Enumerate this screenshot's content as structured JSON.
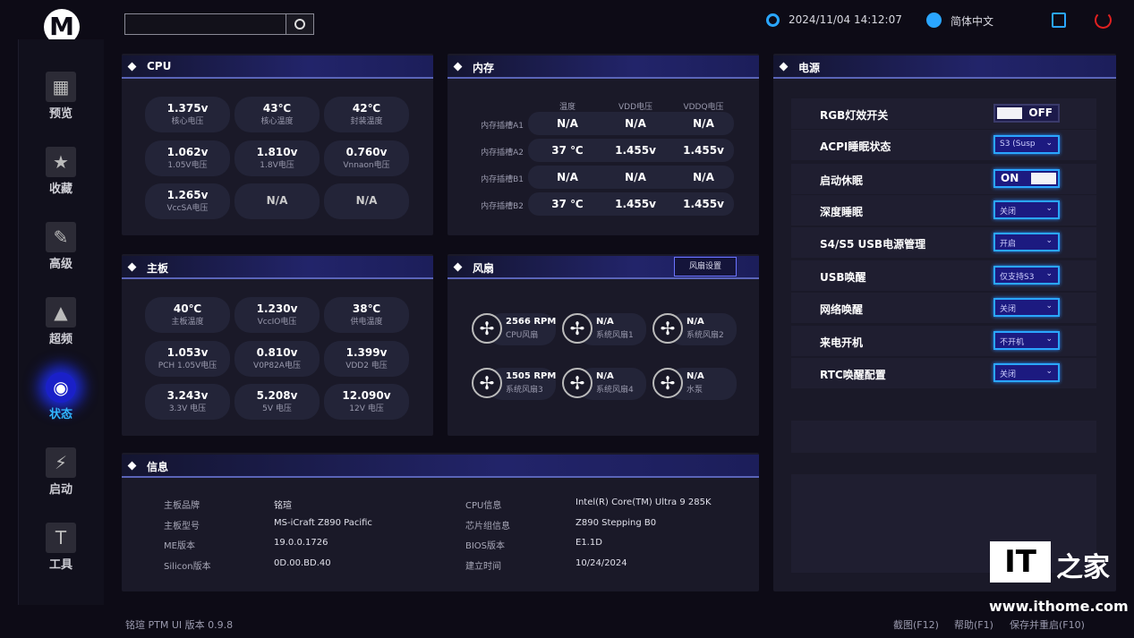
{
  "header": {
    "search_placeholder": "",
    "datetime": "2024/11/04 14:12:07",
    "language": "简体中文",
    "icons": {
      "search": "search-icon",
      "clock": "gear-icon",
      "language": "globe-icon",
      "save": "save-icon",
      "power": "power-icon"
    },
    "power_color": "#e02020",
    "accent": "#2aa6ff"
  },
  "sidebar": {
    "active": "状态",
    "items": [
      {
        "label": "预览",
        "icon": "grid-icon"
      },
      {
        "label": "收藏",
        "icon": "star-icon"
      },
      {
        "label": "高级",
        "icon": "wrench-icon"
      },
      {
        "label": "超频",
        "icon": "rocket-icon"
      },
      {
        "label": "状态",
        "icon": "eye-icon"
      },
      {
        "label": "启动",
        "icon": "ssd-icon"
      },
      {
        "label": "工具",
        "icon": "hammer-icon"
      }
    ]
  },
  "cpu": {
    "title": "CPU",
    "tiles": [
      {
        "value": "1.375v",
        "label": "核心电压"
      },
      {
        "value": "43℃",
        "label": "核心温度"
      },
      {
        "value": "42℃",
        "label": "封装温度"
      },
      {
        "value": "1.062v",
        "label": "1.05V电压"
      },
      {
        "value": "1.810v",
        "label": "1.8V电压"
      },
      {
        "value": "0.760v",
        "label": "Vnnaon电压"
      },
      {
        "value": "1.265v",
        "label": "VccSA电压"
      },
      {
        "value": "N/A",
        "label": ""
      },
      {
        "value": "N/A",
        "label": ""
      }
    ]
  },
  "memory": {
    "title": "内存",
    "columns": [
      "温度",
      "VDD电压",
      "VDDQ电压"
    ],
    "rows": [
      {
        "label": "内存插槽A1",
        "values": [
          "N/A",
          "N/A",
          "N/A"
        ]
      },
      {
        "label": "内存插槽A2",
        "values": [
          "37 ℃",
          "1.455v",
          "1.455v"
        ]
      },
      {
        "label": "内存插槽B1",
        "values": [
          "N/A",
          "N/A",
          "N/A"
        ]
      },
      {
        "label": "内存插槽B2",
        "values": [
          "37 ℃",
          "1.455v",
          "1.455v"
        ]
      }
    ]
  },
  "board": {
    "title": "主板",
    "tiles": [
      {
        "value": "40℃",
        "label": "主板温度"
      },
      {
        "value": "1.230v",
        "label": "VccIO电压"
      },
      {
        "value": "38℃",
        "label": "供电温度"
      },
      {
        "value": "1.053v",
        "label": "PCH 1.05V电压"
      },
      {
        "value": "0.810v",
        "label": "V0P82A电压"
      },
      {
        "value": "1.399v",
        "label": "VDD2 电压"
      },
      {
        "value": "3.243v",
        "label": "3.3V 电压"
      },
      {
        "value": "5.208v",
        "label": "5V 电压"
      },
      {
        "value": "12.090v",
        "label": "12V 电压"
      }
    ]
  },
  "fans": {
    "title": "风扇",
    "settings_label": "风扇设置",
    "items": [
      {
        "value": "2566 RPM",
        "label": "CPU风扇"
      },
      {
        "value": "N/A",
        "label": "系统风扇1"
      },
      {
        "value": "N/A",
        "label": "系统风扇2"
      },
      {
        "value": "1505 RPM",
        "label": "系统风扇3"
      },
      {
        "value": "N/A",
        "label": "系统风扇4"
      },
      {
        "value": "N/A",
        "label": "水泵"
      }
    ]
  },
  "info": {
    "title": "信息",
    "left": [
      {
        "label": "主板品牌",
        "value": "铭瑄"
      },
      {
        "label": "主板型号",
        "value": "MS-iCraft Z890 Pacific"
      },
      {
        "label": "ME版本",
        "value": "19.0.0.1726"
      },
      {
        "label": "Silicon版本",
        "value": "0D.00.BD.40"
      }
    ],
    "right": [
      {
        "label": "CPU信息",
        "value": "Intel(R) Core(TM) Ultra 9 285K"
      },
      {
        "label": "芯片组信息",
        "value": "Z890 Stepping B0"
      },
      {
        "label": "BIOS版本",
        "value": "E1.1D"
      },
      {
        "label": "建立时间",
        "value": "10/24/2024"
      }
    ]
  },
  "power": {
    "title": "电源",
    "rows": [
      {
        "label": "RGB灯效开关",
        "type": "toggle",
        "value": "OFF"
      },
      {
        "label": "ACPI睡眠状态",
        "type": "select",
        "value": "S3 (Susp"
      },
      {
        "label": "启动休眠",
        "type": "toggle",
        "value": "ON"
      },
      {
        "label": "深度睡眠",
        "type": "select",
        "value": "关闭"
      },
      {
        "label": "S4/S5 USB电源管理",
        "type": "select",
        "value": "开启"
      },
      {
        "label": "USB唤醒",
        "type": "select",
        "value": "仅支持S3"
      },
      {
        "label": "网络唤醒",
        "type": "select",
        "value": "关闭"
      },
      {
        "label": "来电开机",
        "type": "select",
        "value": "不开机"
      },
      {
        "label": "RTC唤醒配置",
        "type": "select",
        "value": "关闭"
      }
    ]
  },
  "footer": {
    "version": "铭瑄 PTM UI 版本 0.9.8",
    "screenshot": "截图(F12)",
    "help": "帮助(F1)",
    "save_restart": "保存并重启(F10)"
  },
  "watermark": {
    "logo": "IT之家",
    "url": "www.ithome.com"
  }
}
